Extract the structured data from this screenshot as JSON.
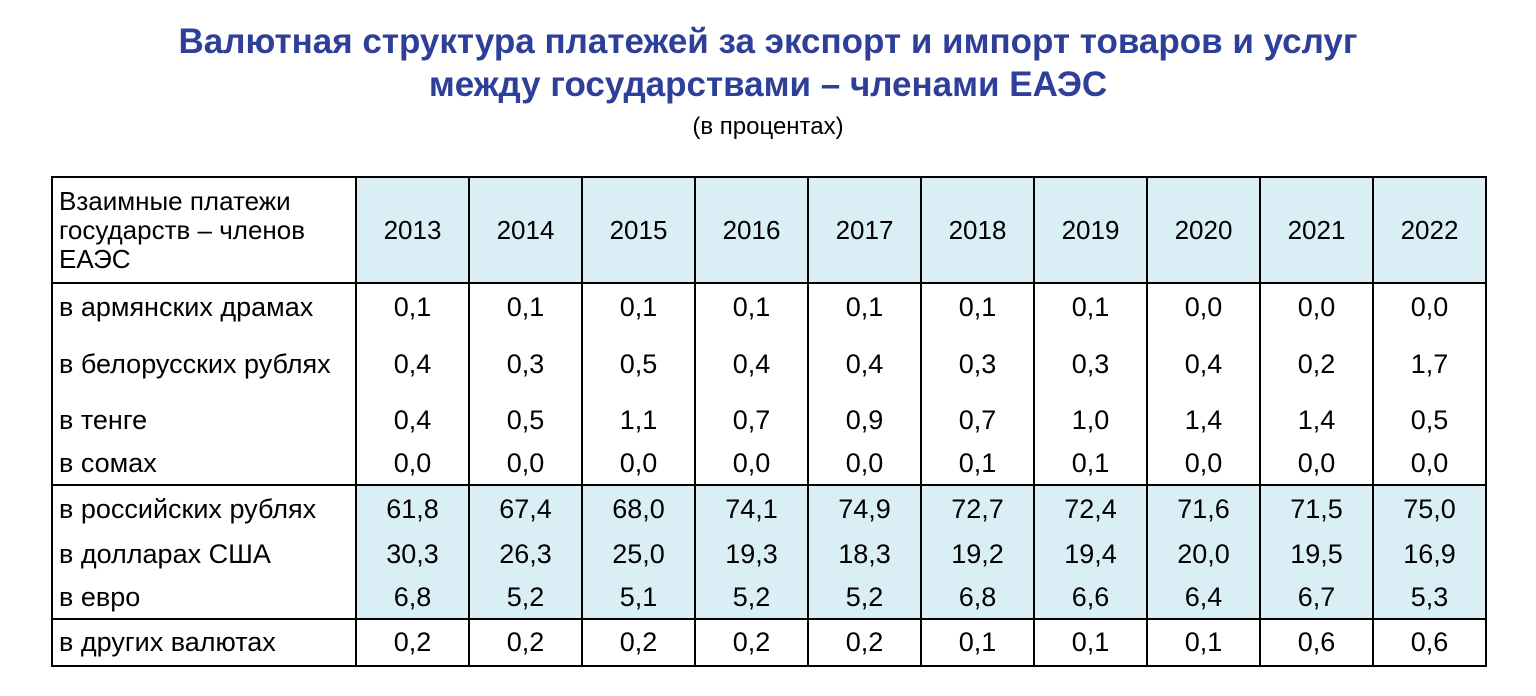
{
  "title": {
    "line1": "Валютная структура платежей за экспорт и импорт товаров и услуг",
    "line2": "между государствами – членами ЕАЭС"
  },
  "subtitle": "(в процентах)",
  "table": {
    "header_label": "Взаимные платежи государств – членов ЕАЭС",
    "years": [
      "2013",
      "2014",
      "2015",
      "2016",
      "2017",
      "2018",
      "2019",
      "2020",
      "2021",
      "2022"
    ],
    "rows": [
      {
        "label": "в армянских драмах",
        "values": [
          "0,1",
          "0,1",
          "0,1",
          "0,1",
          "0,1",
          "0,1",
          "0,1",
          "0,0",
          "0,0",
          "0,0"
        ]
      },
      {
        "label": "в белорусских рублях",
        "values": [
          "0,4",
          "0,3",
          "0,5",
          "0,4",
          "0,4",
          "0,3",
          "0,3",
          "0,4",
          "0,2",
          "1,7"
        ]
      },
      {
        "label": "в тенге",
        "values": [
          "0,4",
          "0,5",
          "1,1",
          "0,7",
          "0,9",
          "0,7",
          "1,0",
          "1,4",
          "1,4",
          "0,5"
        ]
      },
      {
        "label": "в сомах",
        "values": [
          "0,0",
          "0,0",
          "0,0",
          "0,0",
          "0,0",
          "0,1",
          "0,1",
          "0,0",
          "0,0",
          "0,0"
        ]
      },
      {
        "label": "в российских рублях",
        "values": [
          "61,8",
          "67,4",
          "68,0",
          "74,1",
          "74,9",
          "72,7",
          "72,4",
          "71,6",
          "71,5",
          "75,0"
        ]
      },
      {
        "label": "в долларах США",
        "values": [
          "30,3",
          "26,3",
          "25,0",
          "19,3",
          "18,3",
          "19,2",
          "19,4",
          "20,0",
          "19,5",
          "16,9"
        ]
      },
      {
        "label": "в евро",
        "values": [
          "6,8",
          "5,2",
          "5,1",
          "5,2",
          "5,2",
          "6,8",
          "6,6",
          "6,4",
          "6,7",
          "5,3"
        ]
      },
      {
        "label": "в других валютах",
        "values": [
          "0,2",
          "0,2",
          "0,2",
          "0,2",
          "0,2",
          "0,1",
          "0,1",
          "0,1",
          "0,6",
          "0,6"
        ]
      }
    ]
  },
  "colors": {
    "title": "#2e3f99",
    "highlight": "#daeef5"
  }
}
